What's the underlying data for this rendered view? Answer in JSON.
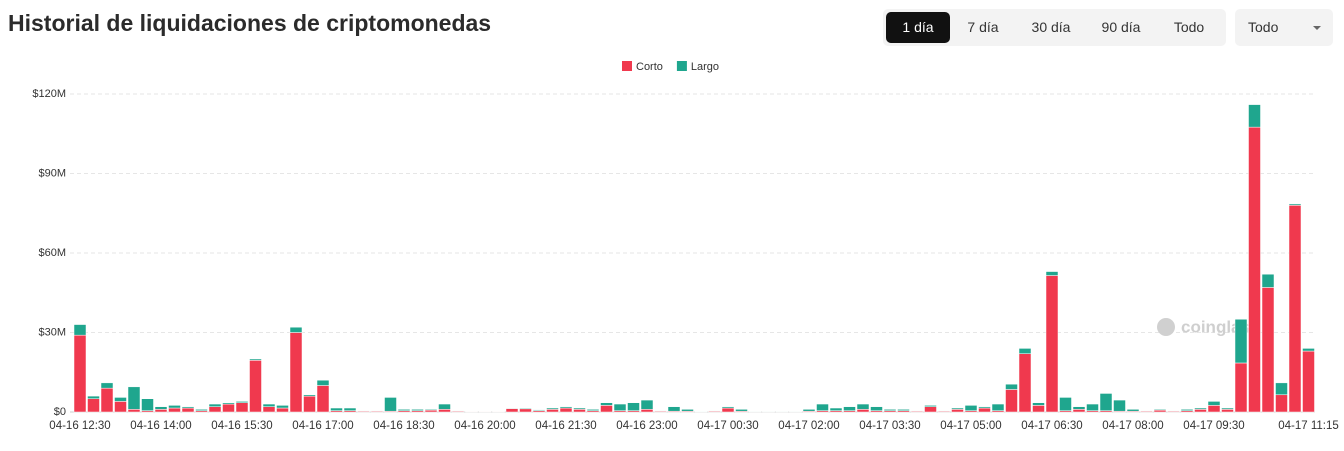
{
  "header": {
    "title": "Historial de liquidaciones de criptomonedas",
    "range_buttons": [
      "1 día",
      "7 día",
      "30 día",
      "90 día",
      "Todo"
    ],
    "dropdown": "Todo"
  },
  "chart_data": {
    "type": "bar",
    "stacked": true,
    "watermark": "coinglass",
    "categories": [
      "04-16 12:30",
      null,
      null,
      null,
      null,
      null,
      "04-16 14:00",
      null,
      null,
      null,
      null,
      null,
      "04-16 15:30",
      null,
      null,
      null,
      null,
      null,
      "04-16 17:00",
      null,
      null,
      null,
      null,
      null,
      "04-16 18:30",
      null,
      null,
      null,
      null,
      null,
      "04-16 20:00",
      null,
      null,
      null,
      null,
      null,
      "04-16 21:30",
      null,
      null,
      null,
      null,
      null,
      "04-16 23:00",
      null,
      null,
      null,
      null,
      null,
      "04-17 00:30",
      null,
      null,
      null,
      null,
      null,
      "04-17 02:00",
      null,
      null,
      null,
      null,
      null,
      "04-17 03:30",
      null,
      null,
      null,
      null,
      null,
      "04-17 05:00",
      null,
      null,
      null,
      null,
      null,
      "04-17 06:30",
      null,
      null,
      null,
      null,
      null,
      "04-17 08:00",
      null,
      null,
      null,
      null,
      null,
      "04-17 09:30",
      null,
      null,
      null,
      null,
      null,
      null,
      "04-17 11:15"
    ],
    "series": [
      {
        "name": "Corto",
        "color": "#f0394e",
        "values": [
          29,
          5,
          9,
          4,
          1,
          0.5,
          1,
          1.5,
          1.5,
          0.5,
          2,
          3,
          3.5,
          19.5,
          2,
          1.5,
          30,
          6,
          10,
          0.5,
          0.5,
          0.3,
          0.3,
          0.3,
          0.5,
          0.5,
          0.7,
          1,
          0.3,
          0.2,
          0.2,
          0.2,
          1.3,
          1.2,
          0.5,
          1,
          1.5,
          1,
          0.5,
          2.5,
          0.5,
          0.5,
          1,
          0.3,
          0.3,
          0.3,
          0.1,
          0.3,
          1.5,
          0.3,
          0.1,
          0.1,
          0.1,
          0.1,
          0.3,
          0.5,
          0.5,
          0.5,
          1,
          0.5,
          0.5,
          0.5,
          0.3,
          2,
          0.3,
          1,
          0.5,
          1.5,
          0.5,
          8.5,
          22,
          2.5,
          51.5,
          0.5,
          1,
          0.5,
          0.5,
          0.3,
          0.3,
          0.3,
          0.7,
          0.3,
          0.5,
          1,
          2.5,
          1,
          18.5,
          107.5,
          47,
          6.5,
          78,
          23
        ]
      },
      {
        "name": "Largo",
        "color": "#1fa68e",
        "values": [
          4,
          1,
          2,
          1.5,
          8.5,
          4.5,
          1,
          1,
          0.5,
          0.5,
          1,
          0.5,
          0.5,
          0.5,
          1,
          1,
          2,
          0.5,
          2,
          1,
          1,
          0.2,
          0.2,
          5.2,
          0.5,
          0.5,
          0.3,
          2,
          0.2,
          0.1,
          0.1,
          0.1,
          0.2,
          0.3,
          0.3,
          0.5,
          0.5,
          0.5,
          0.5,
          1,
          2.5,
          3,
          3.5,
          0.2,
          1.7,
          0.7,
          0.1,
          0.2,
          0.5,
          0.7,
          0.2,
          0.2,
          0.2,
          0.2,
          0.7,
          2.5,
          1,
          1.5,
          2,
          1.5,
          0.5,
          0.5,
          0.2,
          0.5,
          0.2,
          0.5,
          2,
          0.5,
          2.5,
          2,
          2,
          1,
          1.5,
          5,
          1,
          2.5,
          6.5,
          4.2,
          0.7,
          0.2,
          0.3,
          0.2,
          0.5,
          0.5,
          1.5,
          0.5,
          16.5,
          8.5,
          5,
          4.5,
          0.5,
          1
        ]
      }
    ],
    "ylim": [
      0,
      120
    ],
    "yticks": [
      {
        "value": 0,
        "label": "$0"
      },
      {
        "value": 30,
        "label": "$30M"
      },
      {
        "value": 60,
        "label": "$60M"
      },
      {
        "value": 90,
        "label": "$90M"
      },
      {
        "value": 120,
        "label": "$120M"
      }
    ],
    "grid": true,
    "legend": "top"
  }
}
